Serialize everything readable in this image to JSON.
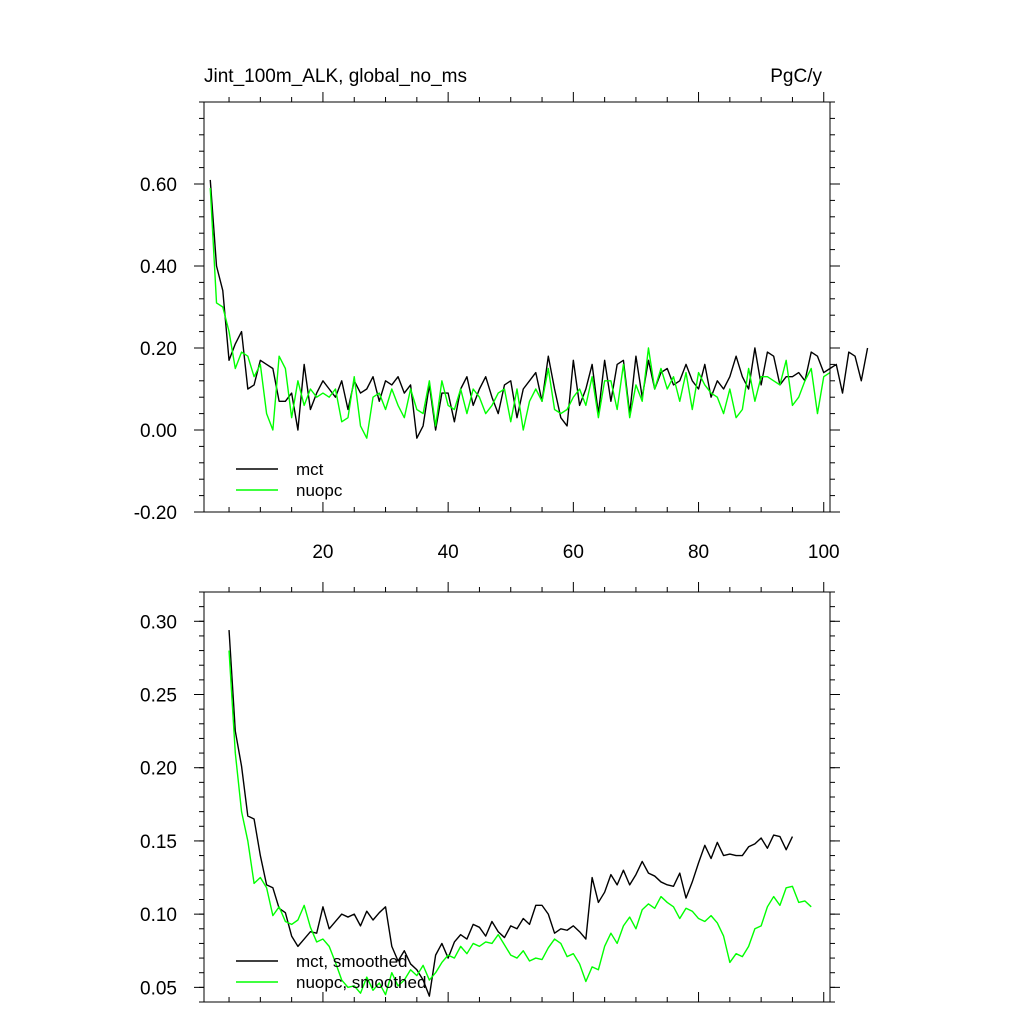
{
  "header": {
    "title_left": "Jint_100m_ALK, global_no_ms",
    "title_right": "PgC/y"
  },
  "colors": {
    "mct": "#000000",
    "nuopc": "#00ff00",
    "axis": "#000000",
    "background": "#ffffff"
  },
  "chart_data": [
    {
      "type": "line",
      "title": "Jint_100m_ALK, global_no_ms",
      "units": "PgC/y",
      "xlim": [
        1,
        101
      ],
      "ylim": [
        -0.2,
        0.8
      ],
      "x_ticks": [
        20,
        40,
        60,
        80,
        100
      ],
      "x_tick_labels": [
        "20",
        "40",
        "60",
        "80",
        "100"
      ],
      "y_ticks": [
        -0.2,
        0.0,
        0.2,
        0.4,
        0.6
      ],
      "y_tick_labels": [
        "-0.20",
        "0.00",
        "0.20",
        "0.40",
        "0.60"
      ],
      "legend_position": "bottom-left",
      "grid": false,
      "x_start": 2,
      "series": [
        {
          "name": "mct",
          "color": "#000000",
          "values": [
            0.61,
            0.4,
            0.34,
            0.17,
            0.21,
            0.24,
            0.1,
            0.11,
            0.17,
            0.16,
            0.15,
            0.07,
            0.07,
            0.09,
            0.0,
            0.16,
            0.05,
            0.09,
            0.12,
            0.1,
            0.08,
            0.12,
            0.05,
            0.12,
            0.09,
            0.1,
            0.13,
            0.07,
            0.12,
            0.11,
            0.13,
            0.09,
            0.11,
            -0.02,
            0.01,
            0.11,
            0.0,
            0.09,
            0.09,
            0.02,
            0.1,
            0.13,
            0.06,
            0.1,
            0.13,
            0.08,
            0.04,
            0.11,
            0.12,
            0.03,
            0.1,
            0.12,
            0.14,
            0.07,
            0.18,
            0.1,
            0.03,
            0.01,
            0.17,
            0.06,
            0.1,
            0.16,
            0.04,
            0.17,
            0.07,
            0.16,
            0.17,
            0.04,
            0.18,
            0.08,
            0.17,
            0.1,
            0.14,
            0.15,
            0.11,
            0.12,
            0.16,
            0.12,
            0.1,
            0.16,
            0.08,
            0.12,
            0.1,
            0.13,
            0.18,
            0.13,
            0.1,
            0.2,
            0.11,
            0.19,
            0.18,
            0.11,
            0.13,
            0.13,
            0.14,
            0.12,
            0.19,
            0.18,
            0.14,
            0.15,
            0.16,
            0.09,
            0.19,
            0.18,
            0.12,
            0.2
          ]
        },
        {
          "name": "nuopc",
          "color": "#00ff00",
          "values": [
            0.59,
            0.31,
            0.3,
            0.24,
            0.15,
            0.19,
            0.18,
            0.13,
            0.16,
            0.04,
            0.0,
            0.18,
            0.15,
            0.03,
            0.12,
            0.06,
            0.1,
            0.08,
            0.09,
            0.08,
            0.1,
            0.02,
            0.03,
            0.13,
            0.01,
            -0.02,
            0.08,
            0.09,
            0.05,
            0.1,
            0.06,
            0.03,
            0.1,
            0.05,
            0.04,
            0.12,
            0.01,
            0.12,
            0.06,
            0.05,
            0.1,
            0.04,
            0.1,
            0.08,
            0.04,
            0.06,
            0.09,
            0.1,
            0.02,
            0.1,
            0.0,
            0.07,
            0.1,
            0.07,
            0.15,
            0.05,
            0.04,
            0.05,
            0.08,
            0.1,
            0.06,
            0.13,
            0.03,
            0.12,
            0.12,
            0.05,
            0.16,
            0.03,
            0.11,
            0.07,
            0.2,
            0.1,
            0.15,
            0.1,
            0.13,
            0.07,
            0.14,
            0.05,
            0.14,
            0.11,
            0.09,
            0.08,
            0.04,
            0.1,
            0.03,
            0.05,
            0.15,
            0.07,
            0.13,
            0.13,
            0.12,
            0.11,
            0.17,
            0.06,
            0.08,
            0.12,
            0.15,
            0.04,
            0.13,
            0.14
          ]
        }
      ]
    },
    {
      "type": "line",
      "title": "",
      "xlim": [
        1,
        101
      ],
      "ylim": [
        0.04,
        0.32
      ],
      "x_ticks": [
        20,
        40,
        60,
        80,
        100
      ],
      "x_tick_labels": [],
      "y_ticks": [
        0.05,
        0.1,
        0.15,
        0.2,
        0.25,
        0.3
      ],
      "y_tick_labels": [
        "0.05",
        "0.10",
        "0.15",
        "0.20",
        "0.25",
        "0.30"
      ],
      "legend_position": "bottom-left",
      "grid": false,
      "x_start": 5,
      "series": [
        {
          "name": "mct, smoothed",
          "color": "#000000",
          "values": [
            0.294,
            0.225,
            0.201,
            0.167,
            0.165,
            0.14,
            0.12,
            0.118,
            0.104,
            0.101,
            0.085,
            0.078,
            0.083,
            0.088,
            0.087,
            0.105,
            0.09,
            0.095,
            0.1,
            0.098,
            0.1,
            0.092,
            0.102,
            0.096,
            0.101,
            0.105,
            0.078,
            0.068,
            0.075,
            0.066,
            0.062,
            0.055,
            0.044,
            0.072,
            0.08,
            0.07,
            0.081,
            0.086,
            0.083,
            0.093,
            0.091,
            0.085,
            0.095,
            0.088,
            0.084,
            0.092,
            0.09,
            0.097,
            0.093,
            0.106,
            0.106,
            0.1,
            0.087,
            0.09,
            0.089,
            0.092,
            0.088,
            0.083,
            0.125,
            0.108,
            0.115,
            0.127,
            0.12,
            0.13,
            0.12,
            0.127,
            0.136,
            0.128,
            0.126,
            0.122,
            0.12,
            0.119,
            0.128,
            0.111,
            0.122,
            0.135,
            0.147,
            0.138,
            0.149,
            0.14,
            0.141,
            0.14,
            0.14,
            0.146,
            0.148,
            0.152,
            0.145,
            0.154,
            0.153,
            0.144,
            0.153
          ]
        },
        {
          "name": "nuopc, smoothed",
          "color": "#00ff00",
          "values": [
            0.28,
            0.21,
            0.17,
            0.15,
            0.121,
            0.125,
            0.118,
            0.099,
            0.105,
            0.095,
            0.093,
            0.096,
            0.106,
            0.091,
            0.081,
            0.083,
            0.078,
            0.067,
            0.055,
            0.05,
            0.051,
            0.046,
            0.057,
            0.048,
            0.053,
            0.045,
            0.06,
            0.051,
            0.055,
            0.062,
            0.058,
            0.065,
            0.055,
            0.06,
            0.067,
            0.072,
            0.07,
            0.078,
            0.073,
            0.08,
            0.078,
            0.081,
            0.08,
            0.086,
            0.079,
            0.072,
            0.07,
            0.075,
            0.068,
            0.07,
            0.069,
            0.077,
            0.083,
            0.08,
            0.071,
            0.073,
            0.066,
            0.054,
            0.064,
            0.062,
            0.078,
            0.087,
            0.08,
            0.092,
            0.098,
            0.09,
            0.103,
            0.107,
            0.104,
            0.112,
            0.108,
            0.105,
            0.097,
            0.104,
            0.102,
            0.097,
            0.095,
            0.099,
            0.094,
            0.085,
            0.067,
            0.073,
            0.071,
            0.078,
            0.09,
            0.092,
            0.105,
            0.112,
            0.106,
            0.118,
            0.119,
            0.108,
            0.109,
            0.105
          ]
        }
      ]
    }
  ]
}
